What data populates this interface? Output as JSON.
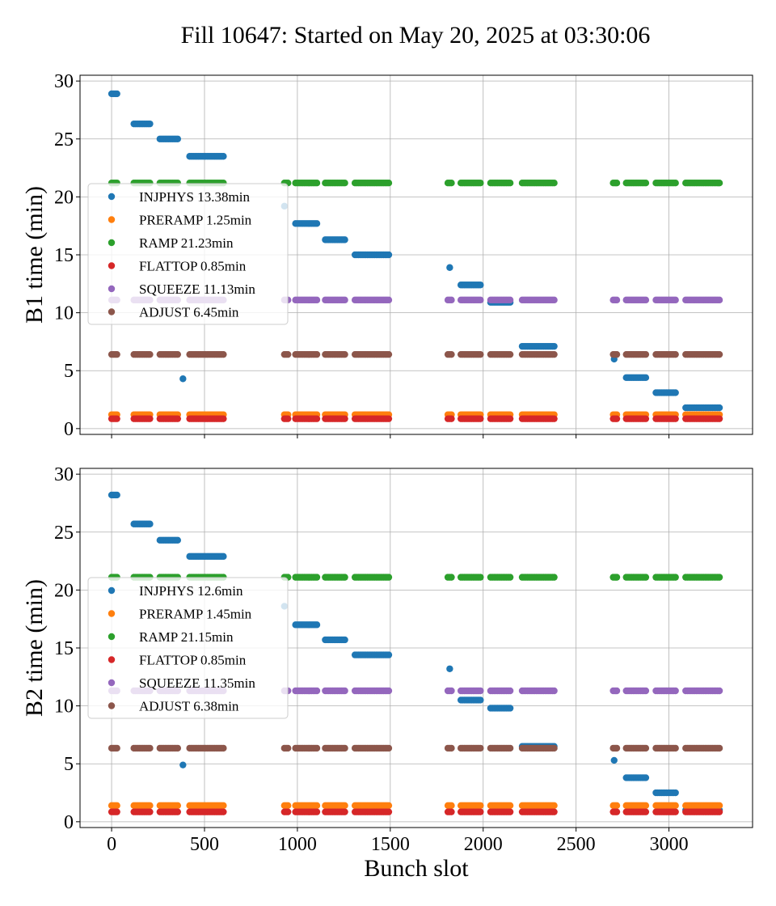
{
  "figure_title": "Fill 10647: Started on May 20, 2025 at 03:30:06",
  "colors": {
    "INJPHYS": "#1f77b4",
    "PRERAMP": "#ff7f0e",
    "RAMP": "#2ca02c",
    "FLATTOP": "#d62728",
    "SQUEEZE": "#9467bd",
    "ADJUST": "#8c564b"
  },
  "chart_data": [
    {
      "type": "scatter",
      "title": "",
      "xlabel": "",
      "ylabel": "B1 time (min)",
      "xlim": [
        -170,
        3450
      ],
      "ylim": [
        -0.5,
        30.5
      ],
      "xticks": [
        "0",
        "500",
        "1000",
        "1500",
        "2000",
        "2500",
        "3000"
      ],
      "yticks": [
        "0",
        "5",
        "10",
        "15",
        "20",
        "25",
        "30"
      ],
      "grid": true,
      "legend_position": "center-left",
      "groups": [
        [
          0,
          30
        ],
        [
          120,
          210
        ],
        [
          260,
          360
        ],
        [
          420,
          610
        ],
        [
          930,
          950
        ],
        [
          990,
          1110
        ],
        [
          1150,
          1260
        ],
        [
          1310,
          1500
        ],
        [
          1810,
          1830
        ],
        [
          1880,
          1990
        ],
        [
          2040,
          2150
        ],
        [
          2210,
          2390
        ],
        [
          2700,
          2720
        ],
        [
          2770,
          2880
        ],
        [
          2930,
          3040
        ],
        [
          3090,
          3280
        ]
      ],
      "series": [
        {
          "name": "INJPHYS 13.38min",
          "key": "INJPHYS",
          "points": [
            [
              0,
              30,
              28.9
            ],
            [
              120,
              210,
              26.3
            ],
            [
              260,
              360,
              25.0
            ],
            [
              384,
              384,
              4.3
            ],
            [
              420,
              610,
              23.5
            ],
            [
              930,
              930,
              19.2
            ],
            [
              990,
              1110,
              17.7
            ],
            [
              1150,
              1260,
              16.3
            ],
            [
              1310,
              1500,
              15.0
            ],
            [
              1820,
              1820,
              13.9
            ],
            [
              1880,
              1990,
              12.4
            ],
            [
              2040,
              2150,
              10.9
            ],
            [
              2210,
              2390,
              7.1
            ],
            [
              2705,
              2705,
              6.0
            ],
            [
              2770,
              2880,
              4.4
            ],
            [
              2930,
              3040,
              3.1
            ],
            [
              3090,
              3280,
              1.8
            ]
          ]
        },
        {
          "name": "PRERAMP 1.25min",
          "key": "PRERAMP",
          "value": 1.2
        },
        {
          "name": "RAMP 21.23min",
          "key": "RAMP",
          "value": 21.2
        },
        {
          "name": "FLATTOP 0.85min",
          "key": "FLATTOP",
          "value": 0.85
        },
        {
          "name": "SQUEEZE 11.13min",
          "key": "SQUEEZE",
          "value": 11.1
        },
        {
          "name": "ADJUST 6.45min",
          "key": "ADJUST",
          "value": 6.4
        }
      ]
    },
    {
      "type": "scatter",
      "title": "",
      "xlabel": "Bunch slot",
      "ylabel": "B2 time (min)",
      "xlim": [
        -170,
        3450
      ],
      "ylim": [
        -0.5,
        30.5
      ],
      "xticks": [
        "0",
        "500",
        "1000",
        "1500",
        "2000",
        "2500",
        "3000"
      ],
      "yticks": [
        "0",
        "5",
        "10",
        "15",
        "20",
        "25",
        "30"
      ],
      "grid": true,
      "legend_position": "center-left",
      "groups": [
        [
          0,
          30
        ],
        [
          120,
          210
        ],
        [
          260,
          360
        ],
        [
          420,
          610
        ],
        [
          930,
          950
        ],
        [
          990,
          1110
        ],
        [
          1150,
          1260
        ],
        [
          1310,
          1500
        ],
        [
          1810,
          1830
        ],
        [
          1880,
          1990
        ],
        [
          2040,
          2150
        ],
        [
          2210,
          2390
        ],
        [
          2700,
          2720
        ],
        [
          2770,
          2880
        ],
        [
          2930,
          3040
        ],
        [
          3090,
          3280
        ]
      ],
      "series": [
        {
          "name": "INJPHYS 12.6min",
          "key": "INJPHYS",
          "points": [
            [
              0,
              30,
              28.2
            ],
            [
              120,
              210,
              25.7
            ],
            [
              260,
              360,
              24.3
            ],
            [
              384,
              384,
              4.9
            ],
            [
              420,
              610,
              22.9
            ],
            [
              930,
              930,
              18.6
            ],
            [
              990,
              1110,
              17.0
            ],
            [
              1150,
              1260,
              15.7
            ],
            [
              1310,
              1500,
              14.4
            ],
            [
              1820,
              1820,
              13.2
            ],
            [
              1880,
              1990,
              10.5
            ],
            [
              2040,
              2150,
              9.8
            ],
            [
              2210,
              2390,
              6.5
            ],
            [
              2705,
              2705,
              5.3
            ],
            [
              2770,
              2880,
              3.8
            ],
            [
              2930,
              3040,
              2.5
            ],
            [
              3090,
              3280,
              1.0
            ]
          ]
        },
        {
          "name": "PRERAMP 1.45min",
          "key": "PRERAMP",
          "value": 1.4
        },
        {
          "name": "RAMP 21.15min",
          "key": "RAMP",
          "value": 21.1
        },
        {
          "name": "FLATTOP 0.85min",
          "key": "FLATTOP",
          "value": 0.85
        },
        {
          "name": "SQUEEZE 11.35min",
          "key": "SQUEEZE",
          "value": 11.3
        },
        {
          "name": "ADJUST 6.38min",
          "key": "ADJUST",
          "value": 6.35
        }
      ]
    }
  ]
}
